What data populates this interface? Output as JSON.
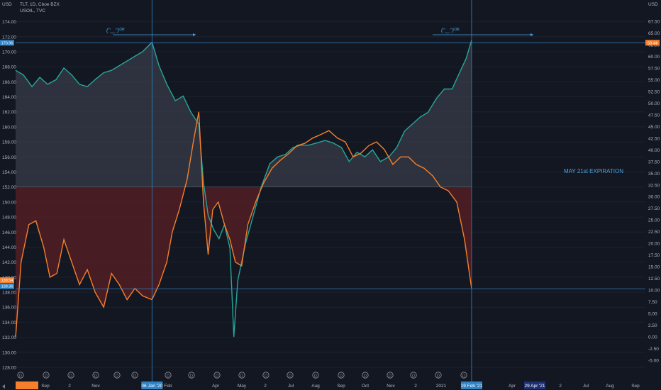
{
  "header": {
    "left_unit": "USD",
    "right_unit": "USD",
    "legend": [
      "TLT, 1D, Cboe BZX",
      "USOIL, TVC"
    ]
  },
  "colors": {
    "background": "#131722",
    "tlt_line": "#f57f2c",
    "usoil_line": "#26a69a",
    "lower_shade": "#5b1f24",
    "upper_shade": "#3a3e4a",
    "crosshair": "#2f83c5",
    "annotation": "#4aa3df",
    "tlt_badge": "#f57f2c",
    "usoil_badge": "#2f83c5"
  },
  "annotations": {
    "expiration": "MAY 21st EXPIRATION",
    "face_left": "(ᵔ‿ᵔ)ᴼᴷ",
    "face_right": "(ᵔ‿ᵔ)ᴼᴷ"
  },
  "badges": {
    "tlt_top": "170.96",
    "usoil_top": "63.44",
    "tlt_bottom": "138.54",
    "usoil_bottom": "138.36"
  },
  "x_axis": {
    "labels": [
      "Sep",
      "2",
      "Nov",
      "Feb",
      "Apr",
      "May",
      "2",
      "Jul",
      "Aug",
      "Sep",
      "Oct",
      "Nov",
      "2",
      "2021",
      "Apr",
      "2",
      "Jul",
      "Aug",
      "Sep"
    ],
    "highlight_left": "06 Jan '20",
    "highlight_mid": "19 Feb '21",
    "highlight_right": "29 Apr '21"
  },
  "chart_data": {
    "type": "line",
    "left_axis": {
      "unit": "USD",
      "ylim": [
        128,
        175
      ],
      "ticks": [
        128.0,
        130.0,
        132.0,
        134.0,
        136.0,
        138.0,
        140.0,
        142.0,
        144.0,
        146.0,
        148.0,
        150.0,
        152.0,
        154.0,
        156.0,
        158.0,
        160.0,
        162.0,
        164.0,
        166.0,
        168.0,
        170.0,
        172.0,
        174.0
      ]
    },
    "right_axis": {
      "unit": "USD",
      "ylim": [
        -6.5,
        69
      ],
      "ticks": [
        -5.0,
        -2.5,
        0.0,
        2.5,
        5.0,
        7.5,
        10.0,
        12.5,
        15.0,
        17.5,
        20.0,
        22.5,
        25.0,
        27.5,
        30.0,
        32.5,
        35.0,
        37.5,
        40.0,
        42.5,
        45.0,
        47.5,
        50.0,
        52.5,
        55.0,
        57.5,
        60.0,
        62.5,
        65.0,
        67.5
      ]
    },
    "series": [
      {
        "name": "TLT, 1D, Cboe BZX",
        "axis": "left",
        "x": [
          "2019-07-15",
          "2019-07-22",
          "2019-08-01",
          "2019-08-10",
          "2019-08-20",
          "2019-08-28",
          "2019-09-06",
          "2019-09-15",
          "2019-09-25",
          "2019-10-05",
          "2019-10-15",
          "2019-10-25",
          "2019-11-05",
          "2019-11-15",
          "2019-11-25",
          "2019-12-05",
          "2019-12-15",
          "2019-12-25",
          "2020-01-06",
          "2020-01-15",
          "2020-01-25",
          "2020-02-01",
          "2020-02-10",
          "2020-02-20",
          "2020-02-28",
          "2020-03-06",
          "2020-03-12",
          "2020-03-18",
          "2020-03-24",
          "2020-03-31",
          "2020-04-08",
          "2020-04-15",
          "2020-04-22",
          "2020-04-30",
          "2020-05-08",
          "2020-05-18",
          "2020-05-28",
          "2020-06-08",
          "2020-06-18",
          "2020-06-30",
          "2020-07-10",
          "2020-07-20",
          "2020-07-30",
          "2020-08-10",
          "2020-08-20",
          "2020-08-31",
          "2020-09-10",
          "2020-09-20",
          "2020-09-30",
          "2020-10-10",
          "2020-10-20",
          "2020-10-30",
          "2020-11-10",
          "2020-11-20",
          "2020-11-30",
          "2020-12-10",
          "2020-12-20",
          "2020-12-31",
          "2021-01-10",
          "2021-01-20",
          "2021-01-31",
          "2021-02-10",
          "2021-02-19"
        ],
        "values": [
          132.0,
          142.0,
          147.0,
          147.5,
          144.0,
          140.0,
          140.5,
          145.0,
          142.0,
          139.0,
          141.0,
          138.0,
          136.0,
          140.5,
          139.0,
          137.0,
          138.5,
          137.5,
          137.0,
          139.0,
          142.0,
          146.0,
          149.0,
          153.0,
          158.0,
          162.0,
          150.0,
          143.0,
          149.0,
          150.0,
          147.0,
          145.0,
          142.0,
          141.5,
          147.0,
          150.0,
          152.5,
          154.5,
          155.5,
          156.5,
          157.5,
          157.8,
          158.5,
          159.0,
          159.5,
          158.5,
          158.0,
          156.0,
          156.5,
          157.5,
          158.0,
          157.0,
          155.0,
          156.0,
          156.0,
          155.0,
          154.5,
          153.5,
          152.0,
          151.5,
          150.0,
          145.0,
          138.5
        ]
      },
      {
        "name": "USOIL, TVC",
        "axis": "right",
        "x": [
          "2019-07-15",
          "2019-07-25",
          "2019-08-05",
          "2019-08-15",
          "2019-08-25",
          "2019-09-05",
          "2019-09-15",
          "2019-09-25",
          "2019-10-05",
          "2019-10-15",
          "2019-10-25",
          "2019-11-05",
          "2019-11-15",
          "2019-11-25",
          "2019-12-05",
          "2019-12-15",
          "2019-12-25",
          "2020-01-06",
          "2020-01-15",
          "2020-01-25",
          "2020-02-05",
          "2020-02-15",
          "2020-02-25",
          "2020-03-06",
          "2020-03-12",
          "2020-03-18",
          "2020-03-25",
          "2020-04-01",
          "2020-04-08",
          "2020-04-15",
          "2020-04-20",
          "2020-04-25",
          "2020-05-05",
          "2020-05-15",
          "2020-05-25",
          "2020-06-05",
          "2020-06-15",
          "2020-06-25",
          "2020-07-05",
          "2020-07-15",
          "2020-07-25",
          "2020-08-05",
          "2020-08-15",
          "2020-08-25",
          "2020-09-05",
          "2020-09-15",
          "2020-09-25",
          "2020-10-05",
          "2020-10-15",
          "2020-10-25",
          "2020-11-05",
          "2020-11-15",
          "2020-11-25",
          "2020-12-05",
          "2020-12-15",
          "2020-12-25",
          "2021-01-05",
          "2021-01-15",
          "2021-01-25",
          "2021-02-05",
          "2021-02-12",
          "2021-02-19"
        ],
        "values": [
          57.0,
          56.0,
          53.5,
          55.5,
          54.0,
          55.0,
          57.5,
          56.0,
          54.0,
          53.5,
          55.0,
          56.5,
          57.0,
          58.0,
          59.0,
          60.0,
          61.0,
          63.0,
          58.0,
          54.0,
          50.5,
          51.5,
          48.0,
          45.5,
          33.0,
          26.0,
          23.0,
          21.0,
          24.0,
          19.0,
          0.0,
          12.0,
          20.0,
          26.0,
          32.0,
          37.0,
          38.5,
          39.0,
          40.5,
          41.0,
          41.0,
          41.5,
          42.0,
          41.5,
          40.5,
          37.5,
          39.5,
          38.5,
          40.0,
          37.5,
          38.5,
          40.5,
          44.0,
          45.5,
          47.0,
          48.0,
          51.0,
          53.0,
          53.0,
          57.0,
          59.5,
          63.4
        ]
      }
    ]
  }
}
